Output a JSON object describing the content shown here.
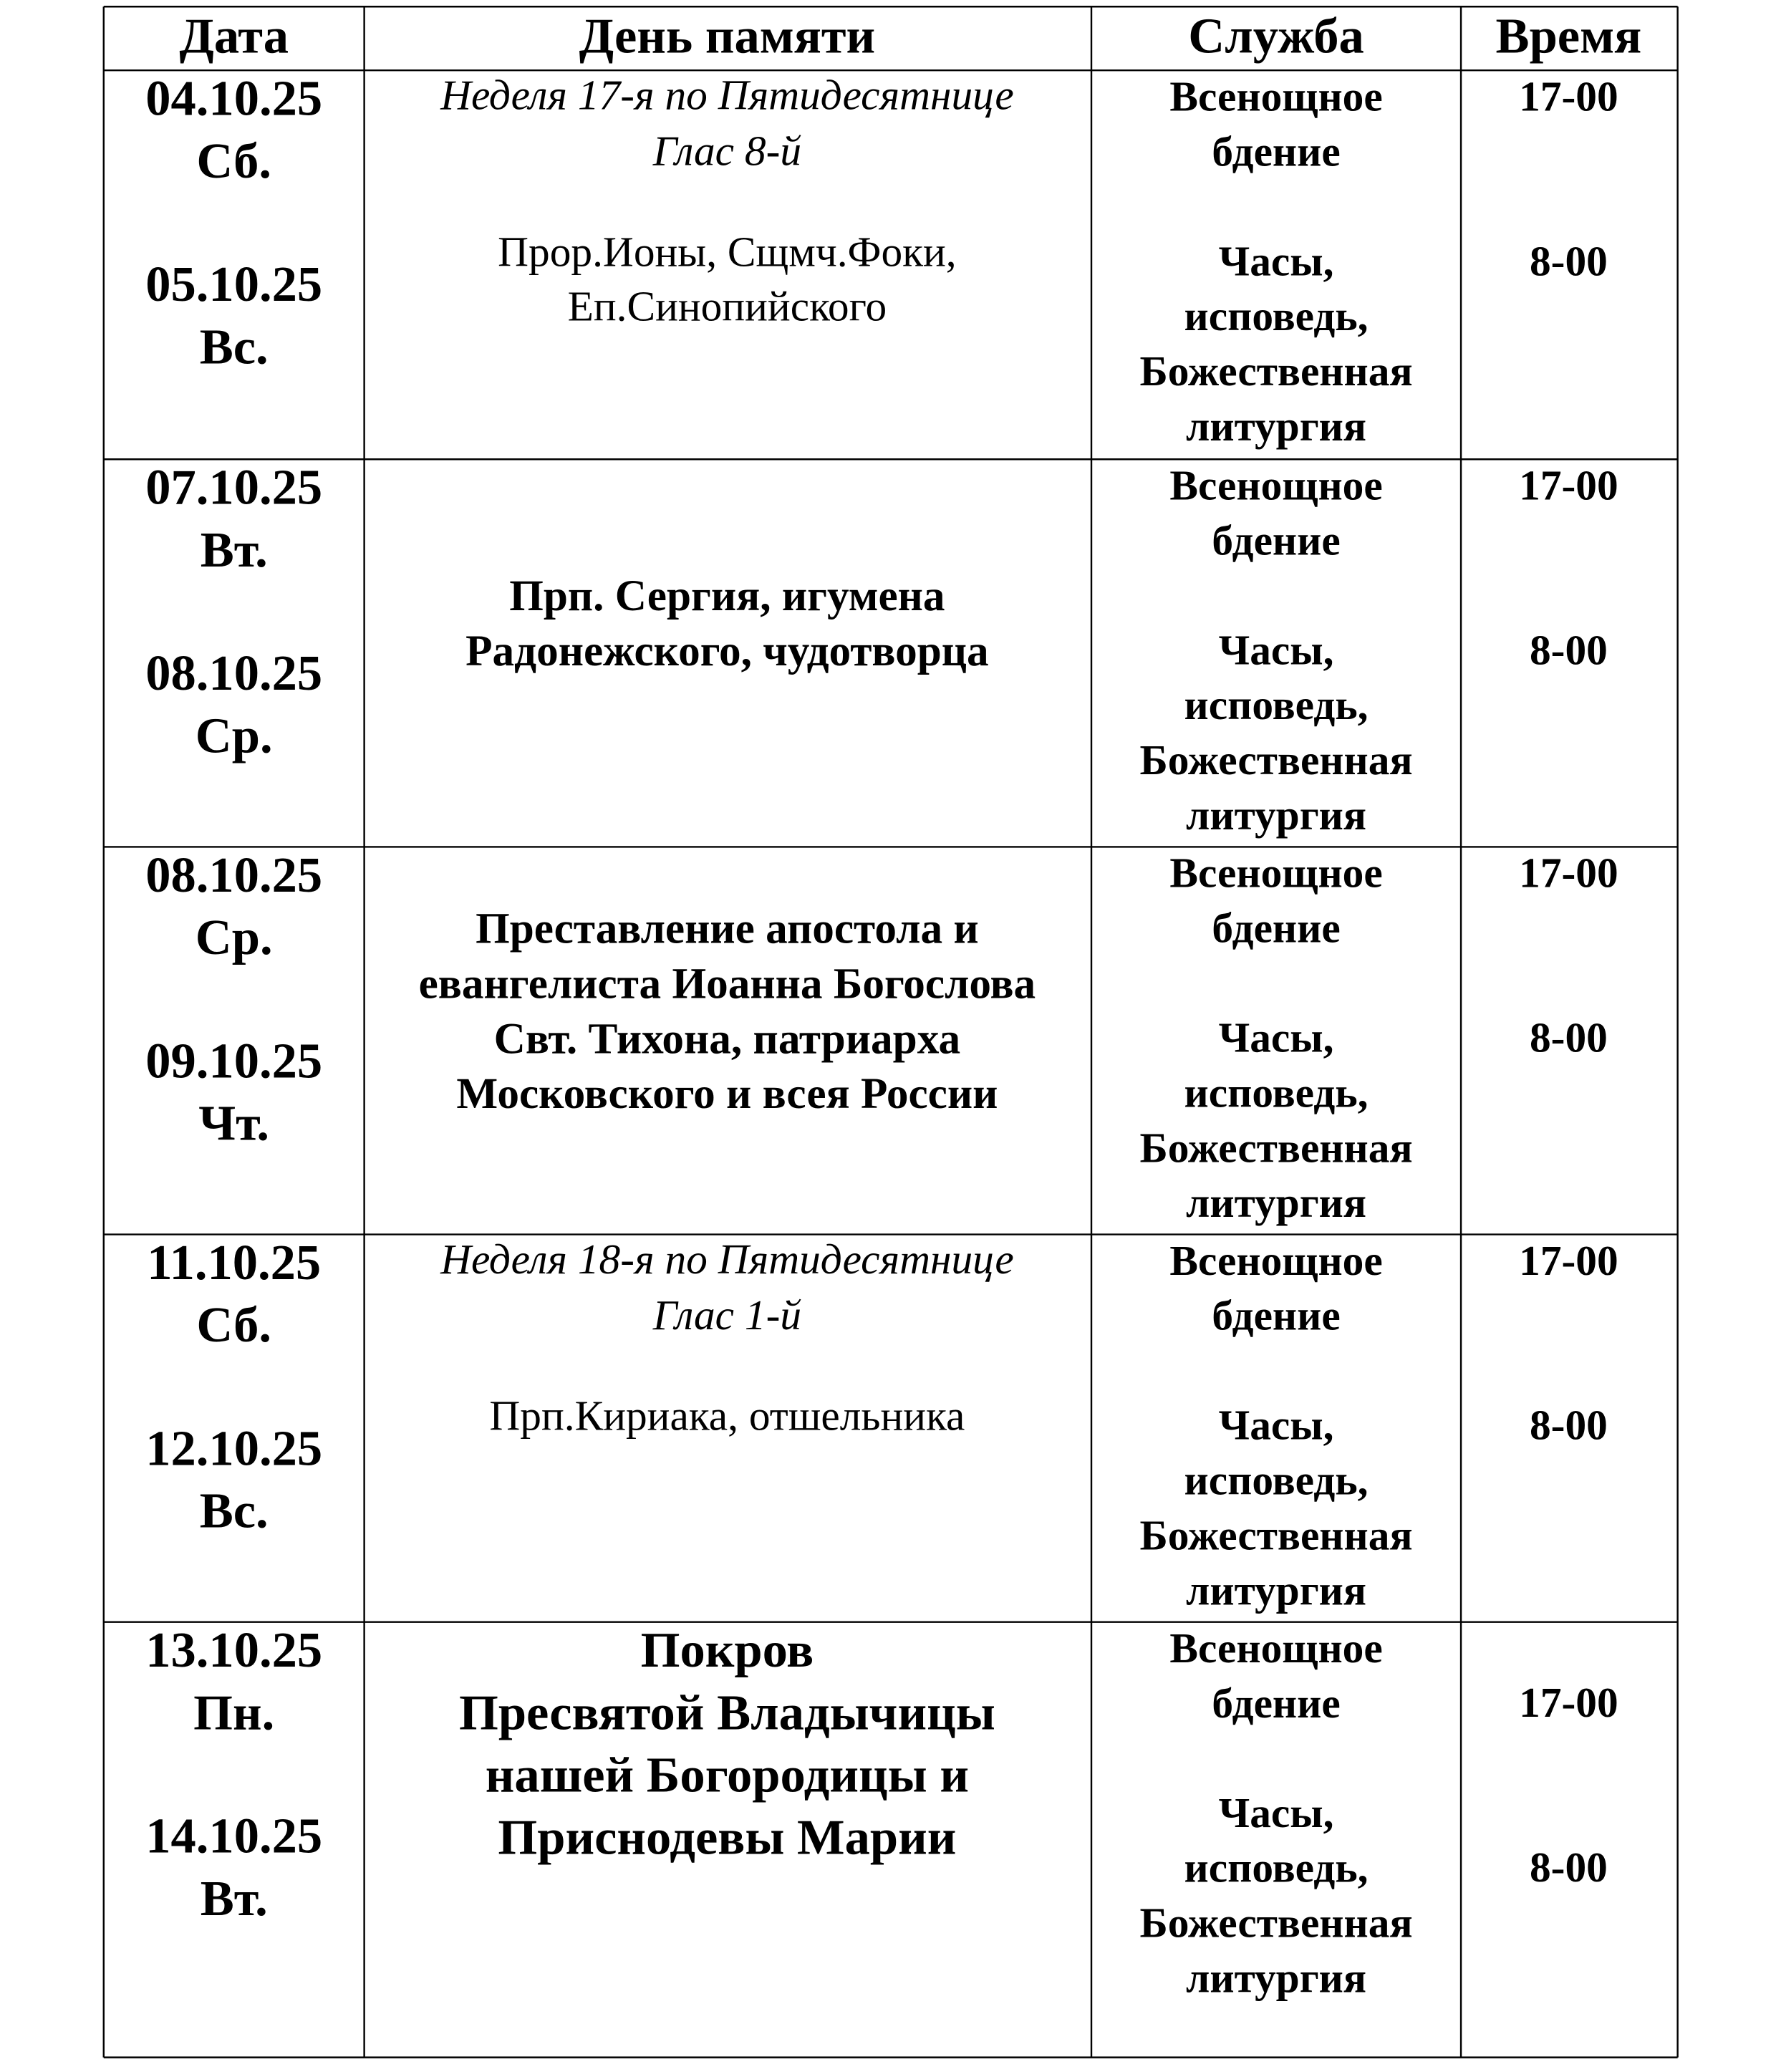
{
  "table": {
    "headers": [
      "Дата",
      "День памяти",
      "Служба",
      "Время"
    ],
    "rows": [
      {
        "days": [
          [
            "04.10.25",
            "Сб."
          ],
          [
            "05.10.25",
            "Вс."
          ]
        ],
        "memory": {
          "italic": [
            "Неделя 17-я по Пятидесятнице",
            "Глас 8-й"
          ],
          "regular": [
            "Прор.Ионы, Сщмч.Фоки,",
            "Еп.Синопийского"
          ]
        },
        "services": [
          [
            "Всенощное",
            "бдение"
          ],
          [
            "Часы,",
            "исповедь,",
            "Божественная",
            "литургия"
          ]
        ],
        "times": [
          "17-00",
          "8-00"
        ]
      },
      {
        "days": [
          [
            "07.10.25",
            "Вт."
          ],
          [
            "08.10.25",
            "Ср."
          ]
        ],
        "memory": {
          "bold": [
            "Прп. Сергия, игумена",
            "Радонежского, чудотворца"
          ]
        },
        "services": [
          [
            "Всенощное",
            "бдение"
          ],
          [
            "Часы,",
            "исповедь,",
            "Божественная",
            "литургия"
          ]
        ],
        "times": [
          "17-00",
          "8-00"
        ]
      },
      {
        "days": [
          [
            "08.10.25",
            "Ср."
          ],
          [
            "09.10.25",
            "Чт."
          ]
        ],
        "memory": {
          "bold": [
            "Преставление апостола и",
            "евангелиста Иоанна Богослова",
            "Свт. Тихона, патриарха",
            "Московского и всея России"
          ]
        },
        "services": [
          [
            "Всенощное",
            "бдение"
          ],
          [
            "Часы,",
            "исповедь,",
            "Божественная",
            "литургия"
          ]
        ],
        "times": [
          "17-00",
          "8-00"
        ]
      },
      {
        "days": [
          [
            "11.10.25",
            "Сб."
          ],
          [
            "12.10.25",
            "Вс."
          ]
        ],
        "memory": {
          "italic": [
            "Неделя 18-я по Пятидесятнице",
            "Глас 1-й"
          ],
          "regular": [
            "Прп.Кириака, отшельника"
          ]
        },
        "services": [
          [
            "Всенощное",
            "бдение"
          ],
          [
            "Часы,",
            "исповедь,",
            "Божественная",
            "литургия"
          ]
        ],
        "times": [
          "17-00",
          "8-00"
        ]
      },
      {
        "days": [
          [
            "13.10.25",
            "Пн."
          ],
          [
            "14.10.25",
            "Вт."
          ]
        ],
        "memory": {
          "large": [
            "Покров",
            "Пресвятой Владычицы",
            "нашей Богородицы и",
            "Приснодевы Марии"
          ]
        },
        "services": [
          [
            "Всенощное",
            "бдение"
          ],
          [
            "Часы,",
            "исповедь,",
            "Божественная",
            "литургия"
          ]
        ],
        "times": [
          "17-00",
          "8-00"
        ]
      }
    ]
  }
}
